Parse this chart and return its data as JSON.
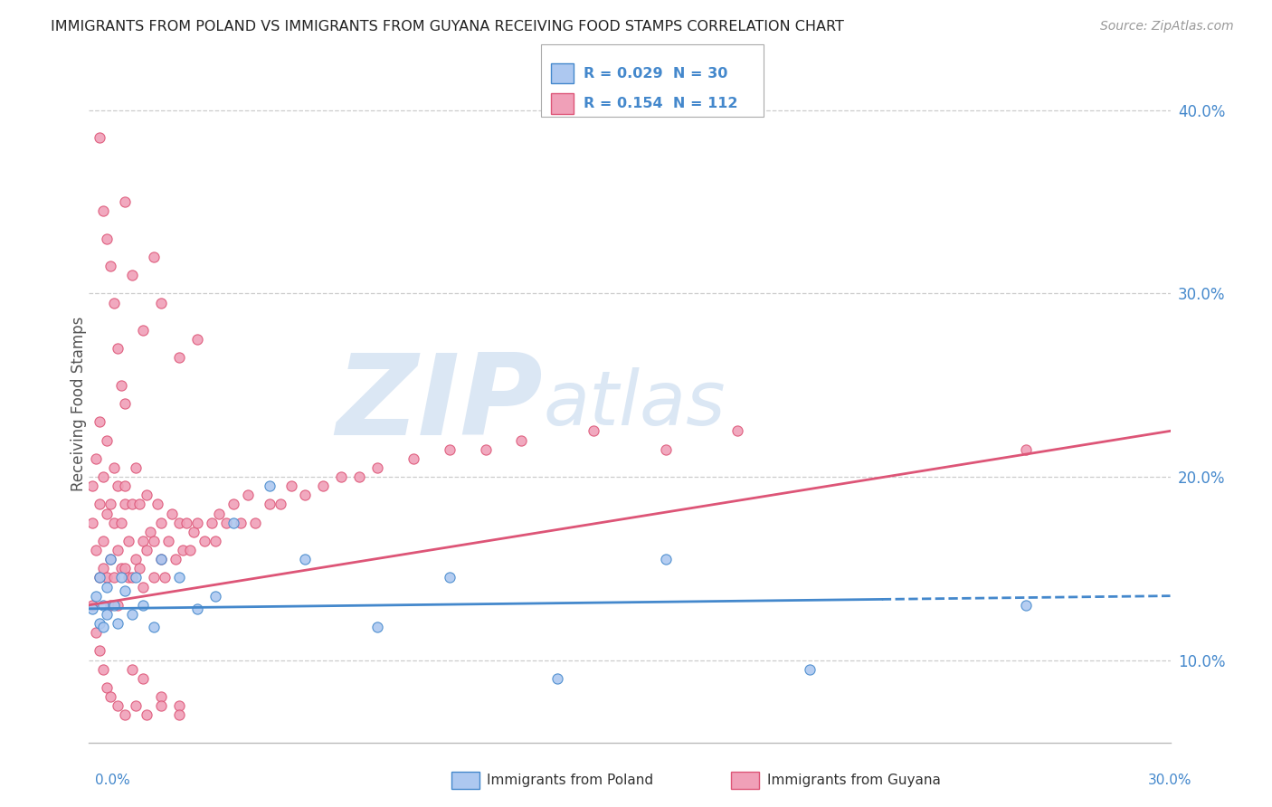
{
  "title": "IMMIGRANTS FROM POLAND VS IMMIGRANTS FROM GUYANA RECEIVING FOOD STAMPS CORRELATION CHART",
  "source": "Source: ZipAtlas.com",
  "ylabel": "Receiving Food Stamps",
  "y_ticks": [
    0.1,
    0.2,
    0.3,
    0.4
  ],
  "y_tick_labels": [
    "10.0%",
    "20.0%",
    "30.0%",
    "40.0%"
  ],
  "x_lim": [
    0.0,
    0.3
  ],
  "y_lim": [
    0.055,
    0.425
  ],
  "poland_color": "#adc8f0",
  "guyana_color": "#f0a0b8",
  "poland_line_color": "#4488cc",
  "guyana_line_color": "#dd5577",
  "watermark_zip": "ZIP",
  "watermark_atlas": "atlas",
  "poland_scatter_x": [
    0.001,
    0.002,
    0.003,
    0.003,
    0.004,
    0.004,
    0.005,
    0.005,
    0.006,
    0.007,
    0.008,
    0.009,
    0.01,
    0.012,
    0.013,
    0.015,
    0.018,
    0.02,
    0.025,
    0.03,
    0.035,
    0.04,
    0.05,
    0.06,
    0.08,
    0.1,
    0.13,
    0.16,
    0.2,
    0.26
  ],
  "poland_scatter_y": [
    0.128,
    0.135,
    0.12,
    0.145,
    0.118,
    0.13,
    0.14,
    0.125,
    0.155,
    0.13,
    0.12,
    0.145,
    0.138,
    0.125,
    0.145,
    0.13,
    0.118,
    0.155,
    0.145,
    0.128,
    0.135,
    0.175,
    0.195,
    0.155,
    0.118,
    0.145,
    0.09,
    0.155,
    0.095,
    0.13
  ],
  "guyana_scatter_x": [
    0.001,
    0.001,
    0.002,
    0.002,
    0.003,
    0.003,
    0.003,
    0.004,
    0.004,
    0.004,
    0.005,
    0.005,
    0.005,
    0.006,
    0.006,
    0.006,
    0.007,
    0.007,
    0.007,
    0.008,
    0.008,
    0.008,
    0.009,
    0.009,
    0.01,
    0.01,
    0.01,
    0.011,
    0.011,
    0.012,
    0.012,
    0.013,
    0.013,
    0.014,
    0.014,
    0.015,
    0.015,
    0.016,
    0.016,
    0.017,
    0.018,
    0.018,
    0.019,
    0.02,
    0.02,
    0.021,
    0.022,
    0.023,
    0.024,
    0.025,
    0.026,
    0.027,
    0.028,
    0.029,
    0.03,
    0.032,
    0.034,
    0.036,
    0.038,
    0.04,
    0.042,
    0.044,
    0.046,
    0.05,
    0.053,
    0.056,
    0.06,
    0.065,
    0.07,
    0.075,
    0.08,
    0.09,
    0.1,
    0.11,
    0.12,
    0.14,
    0.16,
    0.18,
    0.01,
    0.012,
    0.015,
    0.018,
    0.02,
    0.025,
    0.03,
    0.035,
    0.003,
    0.004,
    0.005,
    0.006,
    0.007,
    0.008,
    0.009,
    0.01,
    0.012,
    0.015,
    0.02,
    0.025,
    0.001,
    0.002,
    0.003,
    0.004,
    0.005,
    0.006,
    0.008,
    0.01,
    0.013,
    0.016,
    0.02,
    0.025,
    0.26
  ],
  "guyana_scatter_y": [
    0.175,
    0.195,
    0.16,
    0.21,
    0.145,
    0.185,
    0.23,
    0.15,
    0.2,
    0.165,
    0.18,
    0.145,
    0.22,
    0.155,
    0.185,
    0.13,
    0.175,
    0.145,
    0.205,
    0.16,
    0.195,
    0.13,
    0.175,
    0.15,
    0.185,
    0.15,
    0.195,
    0.145,
    0.165,
    0.185,
    0.145,
    0.205,
    0.155,
    0.185,
    0.15,
    0.165,
    0.14,
    0.19,
    0.16,
    0.17,
    0.165,
    0.145,
    0.185,
    0.155,
    0.175,
    0.145,
    0.165,
    0.18,
    0.155,
    0.175,
    0.16,
    0.175,
    0.16,
    0.17,
    0.175,
    0.165,
    0.175,
    0.18,
    0.175,
    0.185,
    0.175,
    0.19,
    0.175,
    0.185,
    0.185,
    0.195,
    0.19,
    0.195,
    0.2,
    0.2,
    0.205,
    0.21,
    0.215,
    0.215,
    0.22,
    0.225,
    0.215,
    0.225,
    0.35,
    0.31,
    0.28,
    0.32,
    0.295,
    0.265,
    0.275,
    0.165,
    0.385,
    0.345,
    0.33,
    0.315,
    0.295,
    0.27,
    0.25,
    0.24,
    0.095,
    0.09,
    0.08,
    0.075,
    0.13,
    0.115,
    0.105,
    0.095,
    0.085,
    0.08,
    0.075,
    0.07,
    0.075,
    0.07,
    0.075,
    0.07,
    0.215
  ],
  "poland_trend_x": [
    0.0,
    0.3
  ],
  "poland_trend_y": [
    0.128,
    0.135
  ],
  "guyana_trend_x": [
    0.0,
    0.3
  ],
  "guyana_trend_y": [
    0.13,
    0.225
  ]
}
